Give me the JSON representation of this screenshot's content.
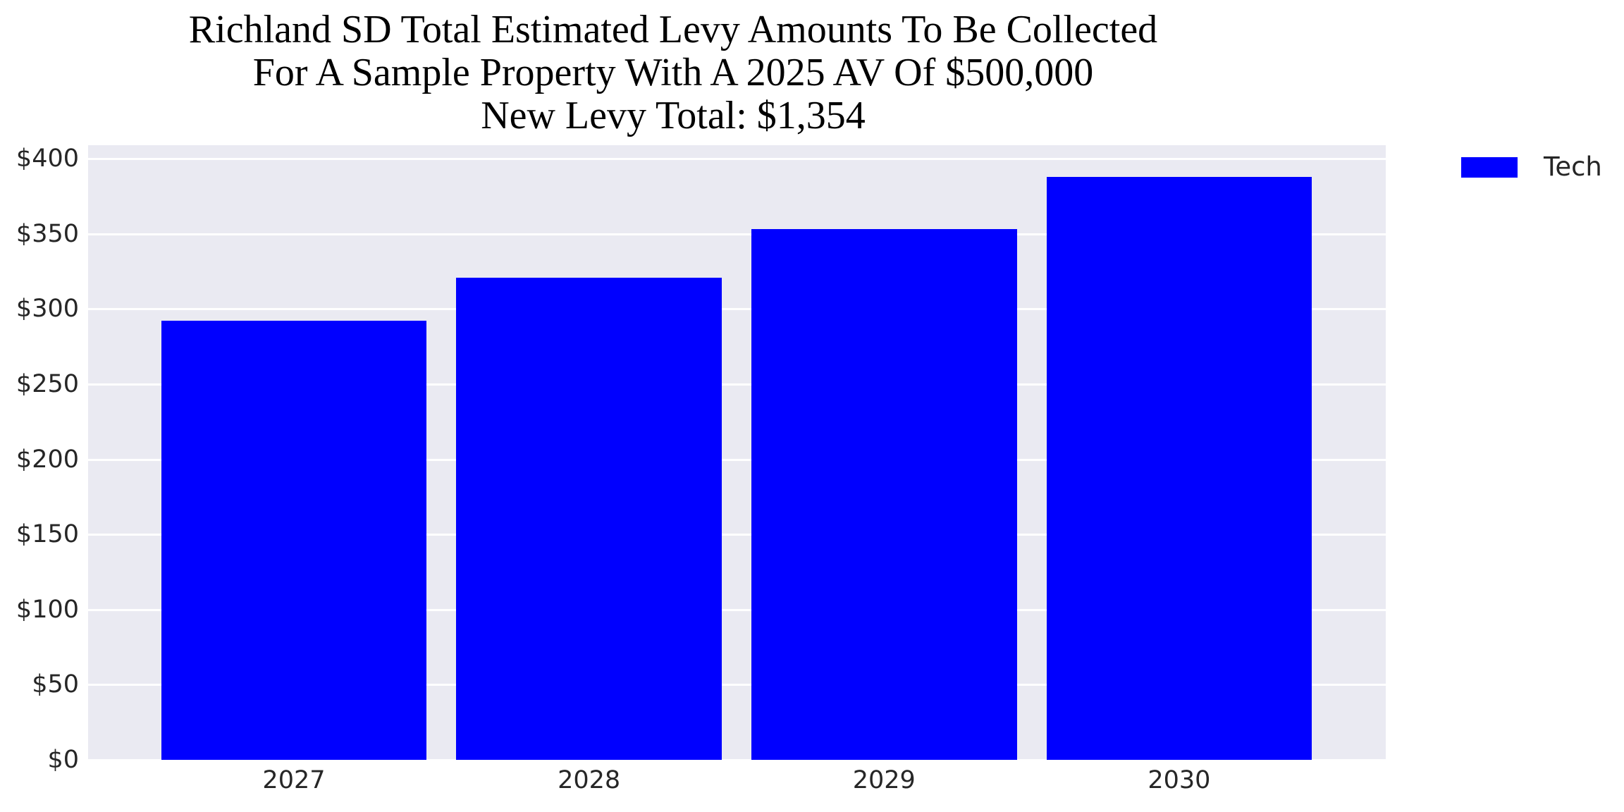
{
  "title": {
    "line1": "Richland SD Total Estimated Levy Amounts To Be Collected",
    "line2": "For A Sample Property With A 2025 AV Of $500,000",
    "line3": "New Levy Total: $1,354"
  },
  "legend": {
    "label": "Tech",
    "swatch_color": "#0000ff"
  },
  "colors": {
    "bar": "#0000ff",
    "plot_background": "#eaeaf2",
    "gridline": "#ffffff",
    "tick_text": "#262626",
    "title_text": "#000000"
  },
  "chart_data": {
    "type": "bar",
    "title": "Richland SD Total Estimated Levy Amounts To Be Collected\nFor A Sample Property With A 2025 AV Of $500,000\nNew Levy Total: $1,354",
    "categories": [
      "2027",
      "2028",
      "2029",
      "2030"
    ],
    "series": [
      {
        "name": "Tech",
        "color": "#0000ff",
        "values": [
          292,
          321,
          353,
          388
        ]
      }
    ],
    "xlabel": "",
    "ylabel": "",
    "ylim": [
      0,
      409
    ],
    "yticks": [
      0,
      50,
      100,
      150,
      200,
      250,
      300,
      350,
      400
    ],
    "ytick_labels": [
      "$0",
      "$50",
      "$100",
      "$150",
      "$200",
      "$250",
      "$300",
      "$350",
      "$400"
    ],
    "grid": true,
    "legend_position": "upper right outside",
    "new_levy_total": "$1,354"
  }
}
